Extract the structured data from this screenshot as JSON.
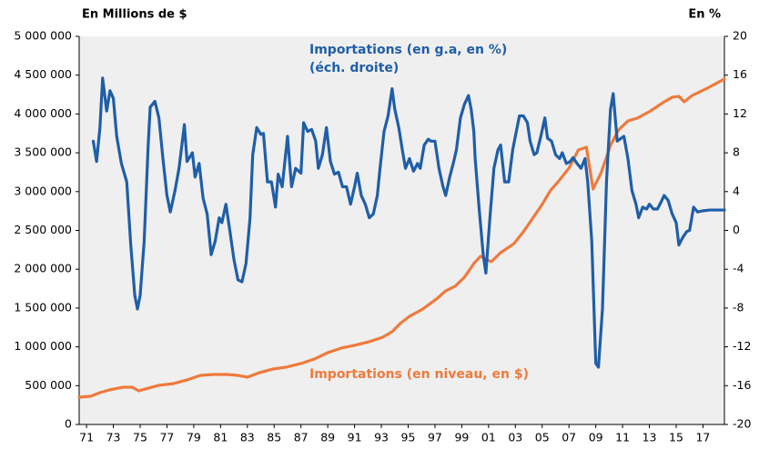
{
  "chart_data": {
    "type": "line",
    "left_axis_label": "En Millions de $",
    "right_axis_label": "En %",
    "annotations": [
      "(éch. droite)"
    ],
    "xlim": [
      1970.45,
      2018.6
    ],
    "xticks": [
      {
        "value": 1971,
        "label": "71"
      },
      {
        "value": 1973,
        "label": "73"
      },
      {
        "value": 1975,
        "label": "75"
      },
      {
        "value": 1977,
        "label": "77"
      },
      {
        "value": 1979,
        "label": "79"
      },
      {
        "value": 1981,
        "label": "81"
      },
      {
        "value": 1983,
        "label": "83"
      },
      {
        "value": 1985,
        "label": "85"
      },
      {
        "value": 1987,
        "label": "87"
      },
      {
        "value": 1989,
        "label": "89"
      },
      {
        "value": 1991,
        "label": "91"
      },
      {
        "value": 1993,
        "label": "93"
      },
      {
        "value": 1995,
        "label": "95"
      },
      {
        "value": 1997,
        "label": "97"
      },
      {
        "value": 1999,
        "label": "99"
      },
      {
        "value": 2001,
        "label": "01"
      },
      {
        "value": 2003,
        "label": "03"
      },
      {
        "value": 2005,
        "label": "05"
      },
      {
        "value": 2007,
        "label": "07"
      },
      {
        "value": 2009,
        "label": "09"
      },
      {
        "value": 2011,
        "label": "11"
      },
      {
        "value": 2013,
        "label": "13"
      },
      {
        "value": 2015,
        "label": "15"
      },
      {
        "value": 2017,
        "label": "17"
      }
    ],
    "ylim": [
      0,
      5000000
    ],
    "yticks": [
      0,
      {
        "value": 500000,
        "label": "500 000"
      },
      {
        "value": 1000000,
        "label": "1 000 000"
      },
      {
        "value": 1500000,
        "label": "1 500 000"
      },
      {
        "value": 2000000,
        "label": "2 000 000"
      },
      {
        "value": 2500000,
        "label": "2 500 000"
      },
      {
        "value": 3000000,
        "label": "3 000 000"
      },
      {
        "value": 3500000,
        "label": "3 500 000"
      },
      {
        "value": 4000000,
        "label": "4 000 000"
      },
      {
        "value": 4500000,
        "label": "4 500 000"
      },
      {
        "value": 5000000,
        "label": "5 000 000"
      }
    ],
    "y2lim": [
      -20,
      20
    ],
    "y2ticks": [
      -20,
      -16,
      -12,
      -8,
      -4,
      0,
      4,
      8,
      12,
      16,
      20
    ],
    "series": [
      {
        "name": "Importations (en g.a, en %)",
        "color": "#1f5ea8",
        "axis": "y2",
        "x": [
          1971.5,
          1971.75,
          1972,
          1972.2,
          1972.5,
          1972.75,
          1973,
          1973.25,
          1973.6,
          1974,
          1974.3,
          1974.6,
          1974.8,
          1975,
          1975.3,
          1975.6,
          1975.75,
          1976.1,
          1976.4,
          1976.7,
          1977,
          1977.25,
          1977.6,
          1977.9,
          1978.3,
          1978.5,
          1978.9,
          1979.1,
          1979.4,
          1979.7,
          1980,
          1980.3,
          1980.6,
          1980.9,
          1981.1,
          1981.4,
          1981.7,
          1982,
          1982.3,
          1982.6,
          1982.9,
          1983.2,
          1983.4,
          1983.7,
          1984,
          1984.2,
          1984.5,
          1984.8,
          1985.1,
          1985.3,
          1985.6,
          1986,
          1986.3,
          1986.6,
          1987,
          1987.2,
          1987.5,
          1987.8,
          1988.1,
          1988.3,
          1988.6,
          1988.9,
          1989.2,
          1989.5,
          1989.8,
          1990.1,
          1990.4,
          1990.7,
          1991,
          1991.2,
          1991.5,
          1991.8,
          1992.1,
          1992.4,
          1992.7,
          1992.9,
          1993.2,
          1993.5,
          1993.8,
          1994,
          1994.3,
          1994.6,
          1994.8,
          1995.1,
          1995.4,
          1995.7,
          1995.9,
          1996.2,
          1996.5,
          1996.7,
          1997,
          1997.3,
          1997.6,
          1997.8,
          1998.1,
          1998.4,
          1998.6,
          1998.9,
          1999.2,
          1999.5,
          1999.7,
          1999.9,
          2000,
          2000.3,
          2000.6,
          2000.8,
          2001.1,
          2001.4,
          2001.7,
          2001.9,
          2002.2,
          2002.5,
          2002.8,
          2003,
          2003.3,
          2003.6,
          2003.9,
          2004.1,
          2004.4,
          2004.6,
          2004.9,
          2005.2,
          2005.4,
          2005.7,
          2006,
          2006.3,
          2006.5,
          2006.8,
          2007.1,
          2007.3,
          2007.6,
          2007.9,
          2008.2,
          2008.4,
          2008.7,
          2009,
          2009.2,
          2009.5,
          2009.8,
          2010.1,
          2010.3,
          2010.6,
          2010.9,
          2011.1,
          2011.4,
          2011.7,
          2012,
          2012.2,
          2012.5,
          2012.8,
          2013,
          2013.3,
          2013.6,
          2013.9,
          2014.1,
          2014.4,
          2014.7,
          2015,
          2015.2,
          2015.5,
          2015.8,
          2016,
          2016.3,
          2016.6,
          2016.9,
          2017.5,
          2018.6
        ],
        "values": [
          9.2,
          7.1,
          10.6,
          15.7,
          12.3,
          14.4,
          13.6,
          9.7,
          6.9,
          5.0,
          -1.5,
          -6.7,
          -8.1,
          -6.7,
          -1.1,
          8.8,
          12.7,
          13.3,
          11.6,
          7.4,
          3.6,
          1.9,
          4.1,
          6.4,
          10.9,
          7.1,
          8.0,
          5.5,
          6.9,
          3.3,
          1.7,
          -2.5,
          -1.1,
          1.3,
          0.8,
          2.7,
          -0.1,
          -3.0,
          -5.1,
          -5.3,
          -3.4,
          1.3,
          7.8,
          10.6,
          9.9,
          10.0,
          5.0,
          5.0,
          2.4,
          5.8,
          4.5,
          9.7,
          4.5,
          6.4,
          5.9,
          11.1,
          10.2,
          10.4,
          9.2,
          6.4,
          7.8,
          10.6,
          7.1,
          5.8,
          6.0,
          4.5,
          4.5,
          2.7,
          4.5,
          5.9,
          3.6,
          2.7,
          1.3,
          1.7,
          3.6,
          6.4,
          10.2,
          11.8,
          14.6,
          12.5,
          10.6,
          8.0,
          6.4,
          7.4,
          6.1,
          6.9,
          6.4,
          8.8,
          9.4,
          9.2,
          9.2,
          6.4,
          4.5,
          3.6,
          5.5,
          7.1,
          8.3,
          11.6,
          13.0,
          13.9,
          12.5,
          10.2,
          7.4,
          2.2,
          -2.5,
          -4.4,
          1.3,
          6.4,
          8.3,
          8.8,
          5.0,
          5.0,
          8.3,
          9.7,
          11.8,
          11.8,
          11.1,
          9.2,
          7.8,
          8.0,
          9.7,
          11.6,
          9.5,
          9.2,
          7.8,
          7.4,
          8.0,
          6.9,
          7.1,
          7.5,
          6.9,
          6.4,
          7.4,
          5.0,
          -1.1,
          -13.7,
          -14.1,
          -8.1,
          5.0,
          12.5,
          14.1,
          9.2,
          9.5,
          9.7,
          7.4,
          4.1,
          2.7,
          1.3,
          2.4,
          2.2,
          2.7,
          2.2,
          2.2,
          3.0,
          3.6,
          3.1,
          1.7,
          0.8,
          -1.5,
          -0.7,
          -0.1,
          0.0,
          2.4,
          1.9,
          2.0,
          2.1,
          2.1
        ]
      },
      {
        "name": "Importations (en niveau, en $)",
        "color": "#ef7a3c",
        "axis": "y",
        "x": [
          1970.45,
          1971.3,
          1972,
          1972.7,
          1973.7,
          1974.4,
          1974.9,
          1975.4,
          1976.4,
          1977.5,
          1978.5,
          1979.5,
          1980.5,
          1981.5,
          1982.3,
          1983,
          1983.9,
          1984.9,
          1985.9,
          1987,
          1988,
          1989,
          1990,
          1991,
          1992.1,
          1993.1,
          1993.8,
          1994.4,
          1995.1,
          1996.1,
          1997.2,
          1997.8,
          1998.5,
          1999.2,
          1999.9,
          2000.4,
          2000.8,
          2001.2,
          2001.9,
          2002.9,
          2003.6,
          2004.3,
          2005,
          2005.6,
          2006.3,
          2007,
          2007.7,
          2008.3,
          2008.8,
          2009.4,
          2010.1,
          2010.7,
          2011.4,
          2012.1,
          2013.1,
          2014,
          2014.7,
          2015.2,
          2015.6,
          2016.2,
          2017.2,
          2018.6
        ],
        "values": [
          351000,
          363000,
          410000,
          445000,
          480000,
          480000,
          433000,
          457000,
          504000,
          527000,
          574000,
          632000,
          644000,
          644000,
          632000,
          609000,
          667000,
          714000,
          738000,
          785000,
          843000,
          925000,
          984000,
          1019000,
          1066000,
          1124000,
          1194000,
          1300000,
          1393000,
          1487000,
          1628000,
          1721000,
          1780000,
          1897000,
          2073000,
          2166000,
          2131000,
          2096000,
          2213000,
          2330000,
          2483000,
          2658000,
          2834000,
          3010000,
          3150000,
          3302000,
          3536000,
          3572000,
          3033000,
          3244000,
          3595000,
          3794000,
          3911000,
          3946000,
          4040000,
          4145000,
          4216000,
          4227000,
          4157000,
          4239000,
          4321000,
          4450000
        ]
      }
    ]
  }
}
